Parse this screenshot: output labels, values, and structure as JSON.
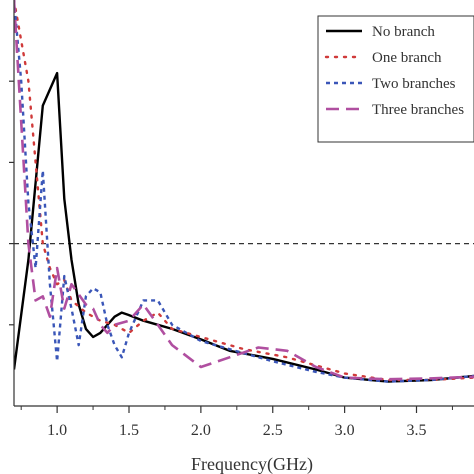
{
  "chart_data": {
    "type": "line",
    "xlabel": "Frequency(GHz)",
    "ylabel": "",
    "xlim": [
      0.7,
      3.9
    ],
    "ylim": [
      0,
      5
    ],
    "xticks": [
      1.0,
      1.5,
      2.0,
      2.5,
      3.0,
      3.5
    ],
    "xtick_labels": [
      "1.0",
      "1.5",
      "2.0",
      "2.5",
      "3.0",
      "3.5"
    ],
    "yticks": [
      1,
      2,
      3,
      4
    ],
    "reference_line": {
      "y": 2
    },
    "legend_position": "top-right",
    "series": [
      {
        "name": "No branch",
        "color": "#000000",
        "style": "solid",
        "x": [
          0.7,
          0.8,
          0.9,
          1.0,
          1.05,
          1.1,
          1.15,
          1.2,
          1.25,
          1.3,
          1.4,
          1.45,
          1.5,
          1.6,
          1.7,
          1.8,
          2.0,
          2.2,
          2.5,
          2.8,
          3.0,
          3.3,
          3.6,
          3.9
        ],
        "y": [
          0.45,
          1.8,
          3.7,
          4.1,
          2.55,
          1.8,
          1.25,
          0.95,
          0.85,
          0.9,
          1.1,
          1.15,
          1.12,
          1.05,
          1.0,
          0.95,
          0.82,
          0.68,
          0.58,
          0.45,
          0.35,
          0.3,
          0.32,
          0.37
        ]
      },
      {
        "name": "One branch",
        "color": "#d03a3a",
        "style": "dotted",
        "x": [
          0.7,
          0.75,
          0.8,
          0.85,
          0.9,
          0.95,
          1.0,
          1.05,
          1.1,
          1.2,
          1.3,
          1.4,
          1.5,
          1.6,
          1.7,
          1.8,
          2.0,
          2.3,
          2.6,
          3.0,
          3.3,
          3.6,
          3.9
        ],
        "y": [
          5,
          4.5,
          4.0,
          3.0,
          2.0,
          1.7,
          1.5,
          1.55,
          1.3,
          1.15,
          1.05,
          1.0,
          0.9,
          1.05,
          1.15,
          0.95,
          0.85,
          0.7,
          0.6,
          0.4,
          0.32,
          0.32,
          0.35
        ]
      },
      {
        "name": "Two branches",
        "color": "#3a56b8",
        "style": "dashed",
        "x": [
          0.7,
          0.75,
          0.8,
          0.85,
          0.9,
          0.95,
          1.0,
          1.05,
          1.1,
          1.15,
          1.2,
          1.25,
          1.3,
          1.35,
          1.4,
          1.45,
          1.5,
          1.6,
          1.7,
          1.8,
          2.0,
          2.2,
          2.5,
          2.8,
          3.0,
          3.3,
          3.6,
          3.9
        ],
        "y": [
          5,
          4.0,
          2.5,
          1.7,
          2.9,
          1.5,
          0.55,
          1.6,
          1.2,
          0.75,
          1.35,
          1.45,
          1.4,
          1.0,
          0.75,
          0.6,
          0.9,
          1.3,
          1.3,
          1.0,
          0.8,
          0.7,
          0.55,
          0.42,
          0.35,
          0.3,
          0.32,
          0.37
        ]
      },
      {
        "name": "Three branches",
        "color": "#b04fa0",
        "style": "longdash",
        "x": [
          0.7,
          0.75,
          0.8,
          0.85,
          0.9,
          0.95,
          1.0,
          1.05,
          1.1,
          1.2,
          1.25,
          1.3,
          1.35,
          1.4,
          1.5,
          1.6,
          1.7,
          1.8,
          2.0,
          2.2,
          2.4,
          2.6,
          2.8,
          3.0,
          3.3,
          3.6,
          3.9
        ],
        "y": [
          5,
          3.5,
          2.0,
          1.3,
          1.35,
          1.1,
          1.7,
          1.2,
          1.5,
          1.25,
          1.2,
          1.0,
          0.9,
          1.0,
          1.05,
          1.25,
          1.0,
          0.75,
          0.48,
          0.6,
          0.72,
          0.68,
          0.48,
          0.35,
          0.33,
          0.34,
          0.36
        ]
      }
    ]
  }
}
